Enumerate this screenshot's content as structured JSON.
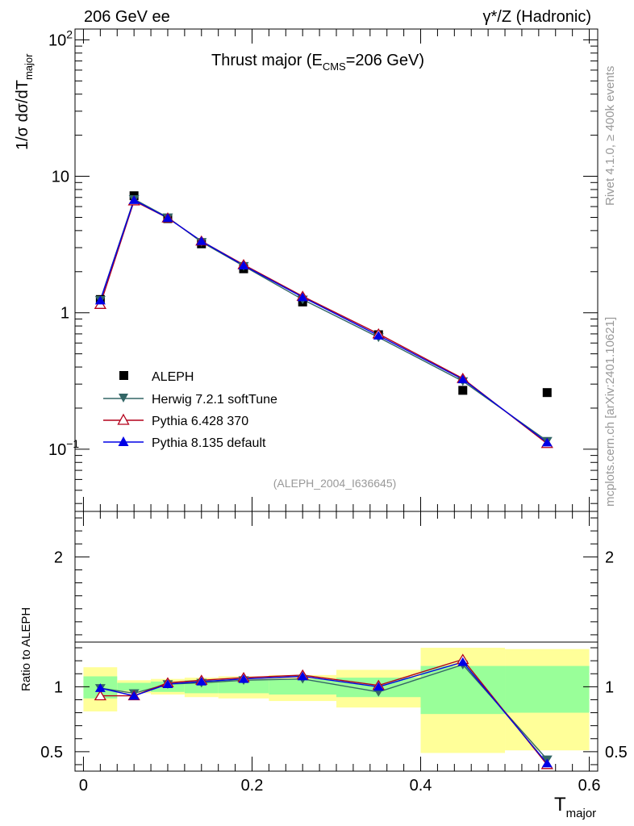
{
  "header": {
    "left": "206 GeV ee",
    "right": "γ*/Z (Hadronic)"
  },
  "side_labels": {
    "rivet": "Rivet 4.1.0, ≥ 400k events",
    "mcplots": "mcplots.cern.ch [arXiv:2401.10621]"
  },
  "chart_data": [
    {
      "type": "line",
      "title": "Thrust major (E",
      "title_sub": "CMS",
      "title_tail": "=206 GeV)",
      "analysis_id": "(ALEPH_2004_I636645)",
      "ylabel": "1/σ  dσ/dT",
      "ylabel_sub": "major",
      "yscale": "log",
      "ylim": [
        0.035,
        120
      ],
      "xlim": [
        -0.01,
        0.61
      ],
      "y_ticks": [
        {
          "value": 0.1,
          "label": "10",
          "exp": "−1"
        },
        {
          "value": 1,
          "label": "1",
          "exp": ""
        },
        {
          "value": 10,
          "label": "10",
          "exp": ""
        },
        {
          "value": 100,
          "label": "10",
          "exp": "2"
        }
      ],
      "x": [
        0.02,
        0.06,
        0.1,
        0.14,
        0.19,
        0.26,
        0.35,
        0.45,
        0.55
      ],
      "data": {
        "name": "ALEPH",
        "values": [
          1.25,
          7.2,
          4.9,
          3.2,
          2.1,
          1.2,
          0.69,
          0.27,
          0.26
        ]
      },
      "series": [
        {
          "name": "Herwig 7.2.1 softTune",
          "color": "#336666",
          "marker": "triangle-down",
          "values": [
            1.24,
            6.8,
            5.0,
            3.3,
            2.2,
            1.25,
            0.66,
            0.315,
            0.115
          ]
        },
        {
          "name": "Pythia 6.428 370",
          "color": "#b3001a",
          "marker": "triangle-up-open",
          "values": [
            1.15,
            6.6,
            4.95,
            3.35,
            2.25,
            1.32,
            0.7,
            0.33,
            0.11
          ]
        },
        {
          "name": "Pythia 8.135 default",
          "color": "#0000e6",
          "marker": "triangle-up",
          "values": [
            1.23,
            6.7,
            4.95,
            3.35,
            2.22,
            1.3,
            0.68,
            0.325,
            0.112
          ]
        }
      ]
    },
    {
      "type": "line",
      "ylabel": "Ratio to ALEPH",
      "xlabel": "T",
      "xlabel_sub": "major",
      "ylim": [
        0.35,
        2.35
      ],
      "xlim": [
        -0.01,
        0.61
      ],
      "y_ticks": [
        0.5,
        1,
        2
      ],
      "x_ticks": [
        0,
        0.2,
        0.4,
        0.6
      ],
      "x_tick_labels": [
        "0",
        "0.2",
        "0.4",
        "0.6"
      ],
      "bins": [
        {
          "lo": 0.0,
          "hi": 0.04,
          "stat_lo": 0.91,
          "stat_hi": 1.08,
          "tot_lo": 0.81,
          "tot_hi": 1.15
        },
        {
          "lo": 0.04,
          "hi": 0.08,
          "stat_lo": 0.97,
          "stat_hi": 1.03,
          "tot_lo": 0.95,
          "tot_hi": 1.05
        },
        {
          "lo": 0.08,
          "hi": 0.12,
          "stat_lo": 0.96,
          "stat_hi": 1.04,
          "tot_lo": 0.94,
          "tot_hi": 1.06
        },
        {
          "lo": 0.12,
          "hi": 0.16,
          "stat_lo": 0.95,
          "stat_hi": 1.05,
          "tot_lo": 0.92,
          "tot_hi": 1.07
        },
        {
          "lo": 0.16,
          "hi": 0.22,
          "stat_lo": 0.95,
          "stat_hi": 1.05,
          "tot_lo": 0.91,
          "tot_hi": 1.08
        },
        {
          "lo": 0.22,
          "hi": 0.3,
          "stat_lo": 0.94,
          "stat_hi": 1.06,
          "tot_lo": 0.89,
          "tot_hi": 1.09
        },
        {
          "lo": 0.3,
          "hi": 0.4,
          "stat_lo": 0.92,
          "stat_hi": 1.07,
          "tot_lo": 0.84,
          "tot_hi": 1.13
        },
        {
          "lo": 0.4,
          "hi": 0.5,
          "stat_lo": 0.79,
          "stat_hi": 1.16,
          "tot_lo": 0.49,
          "tot_hi": 1.3
        },
        {
          "lo": 0.5,
          "hi": 0.6,
          "stat_lo": 0.8,
          "stat_hi": 1.16,
          "tot_lo": 0.51,
          "tot_hi": 1.29
        }
      ],
      "x": [
        0.02,
        0.06,
        0.1,
        0.14,
        0.19,
        0.26,
        0.35,
        0.45,
        0.55
      ],
      "series": [
        {
          "name": "Herwig 7.2.1 softTune",
          "color": "#336666",
          "marker": "triangle-down",
          "values": [
            0.99,
            0.95,
            1.02,
            1.03,
            1.05,
            1.06,
            0.96,
            1.17,
            0.44
          ]
        },
        {
          "name": "Pythia 6.428 370",
          "color": "#b3001a",
          "marker": "triangle-up-open",
          "values": [
            0.93,
            0.93,
            1.03,
            1.05,
            1.07,
            1.09,
            1.01,
            1.21,
            0.4
          ]
        },
        {
          "name": "Pythia 8.135 default",
          "color": "#0000e6",
          "marker": "triangle-up",
          "values": [
            0.99,
            0.93,
            1.02,
            1.04,
            1.06,
            1.08,
            1.0,
            1.19,
            0.41
          ]
        }
      ]
    }
  ]
}
